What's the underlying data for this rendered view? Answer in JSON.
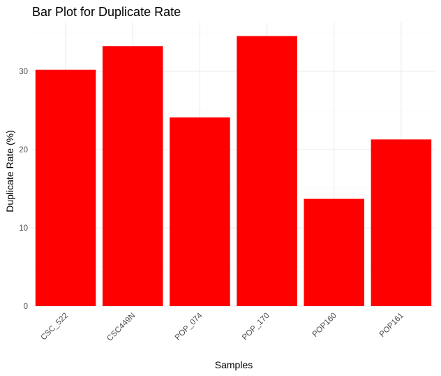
{
  "chart_data": {
    "type": "bar",
    "title": "Bar Plot for Duplicate Rate",
    "xlabel": "Samples",
    "ylabel": "Duplicate Rate (%)",
    "categories": [
      "CSC_522",
      "CSC449N",
      "POP_074",
      "POP_170",
      "POP160",
      "POP161"
    ],
    "values": [
      30.2,
      33.2,
      24.1,
      34.5,
      13.7,
      21.3
    ],
    "ylim": [
      0,
      36
    ],
    "yticks": [
      0,
      10,
      20,
      30
    ],
    "ytick_labels": [
      "0",
      "10",
      "20",
      "30"
    ],
    "grid": true,
    "legend": "none",
    "bar_color": "#ff0000",
    "tick_label_rotation": 45
  }
}
